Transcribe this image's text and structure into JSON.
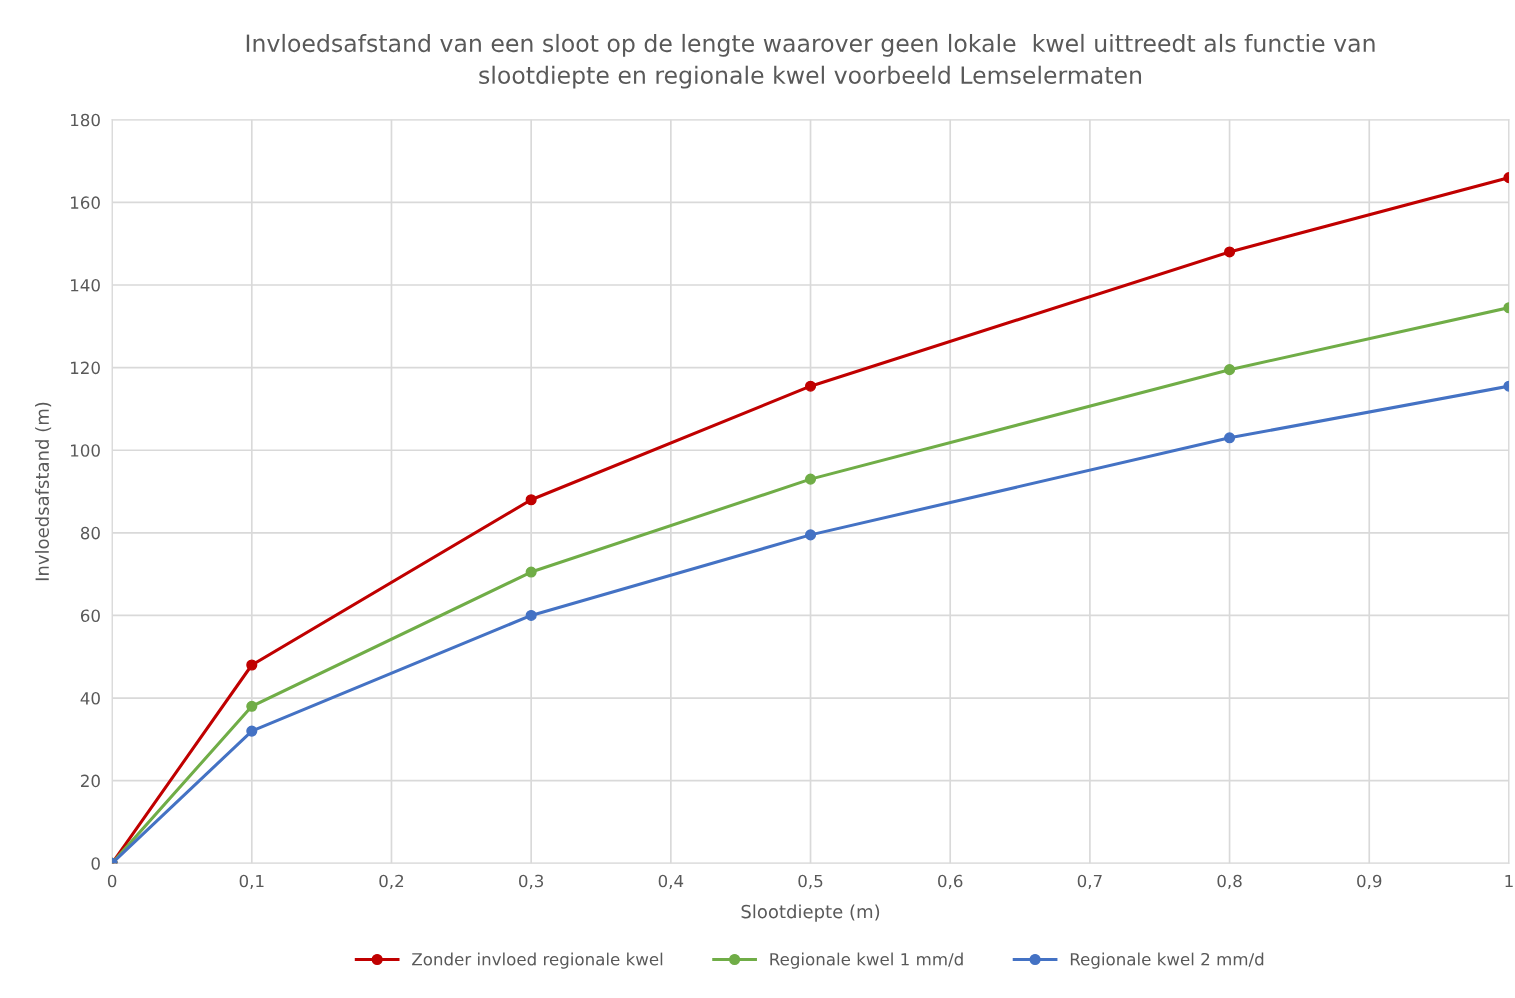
{
  "chart_data": {
    "type": "line",
    "title": "Invloedsafstand van een sloot op de lengte waarover geen lokale  kwel uittreedt als functie van\nslootdiepte en regionale kwel voorbeeld Lemselermaten",
    "xlabel": "Slootdiepte (m)",
    "ylabel": "Invloedsafstand (m)",
    "x": [
      0,
      0.1,
      0.3,
      0.5,
      0.8,
      1
    ],
    "series": [
      {
        "name": "Zonder invloed regionale kwel",
        "color": "#c00000",
        "values": [
          0,
          48,
          88,
          115.5,
          148,
          166
        ]
      },
      {
        "name": "Regionale kwel 1 mm/d",
        "color": "#70ad47",
        "values": [
          0,
          38,
          70.5,
          93,
          119.5,
          134.5
        ]
      },
      {
        "name": "Regionale kwel 2 mm/d",
        "color": "#4472c4",
        "values": [
          0,
          32,
          60,
          79.5,
          103,
          115.5
        ]
      }
    ],
    "xlim": [
      0,
      1
    ],
    "ylim": [
      0,
      180
    ],
    "xticks": [
      0,
      {
        "value": 0.1,
        "label": "0,1"
      },
      {
        "value": 0.2,
        "label": "0,2"
      },
      {
        "value": 0.3,
        "label": "0,3"
      },
      {
        "value": 0.4,
        "label": "0,4"
      },
      {
        "value": 0.5,
        "label": "0,5"
      },
      {
        "value": 0.6,
        "label": "0,6"
      },
      {
        "value": 0.7,
        "label": "0,7"
      },
      {
        "value": 0.8,
        "label": "0,8"
      },
      {
        "value": 0.9,
        "label": "0,9"
      },
      1
    ],
    "yticks": [
      0,
      20,
      40,
      60,
      80,
      100,
      120,
      140,
      160,
      180
    ],
    "grid": true,
    "legend": "bottom",
    "marker": "circle",
    "line_style": "solid"
  }
}
